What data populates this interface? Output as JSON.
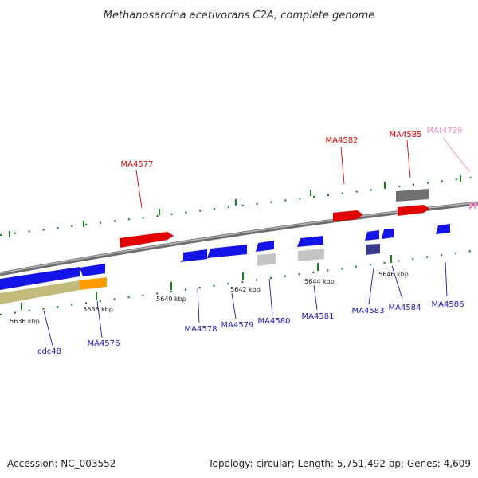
{
  "title": "Methanosarcina acetivorans C2A, complete genome",
  "footer": {
    "accession": "Accession: NC_003552",
    "summary": "Topology: circular; Length: 5,751,492 bp; Genes: 4,609"
  },
  "colors": {
    "red": "#e00000",
    "blue": "#1414e8",
    "darkblue": "#3a3a8c",
    "gray": "#707070",
    "lightgray": "#c4c4c4",
    "orange": "#ff9a00",
    "olive": "#c3bb7b",
    "pink": "#f08cc8",
    "tick": "#1a7f1a",
    "axis": "#8a8a8a",
    "label_red": "#e00000",
    "label_blue": "#1a1ab8",
    "label_pink": "#f08cc8"
  },
  "ticks": [
    {
      "label": "5636 kbp"
    },
    {
      "label": "5638 kbp"
    },
    {
      "label": "5640 kbp"
    },
    {
      "label": "5642 kbp"
    },
    {
      "label": "5644 kbp"
    },
    {
      "label": "5646 kbp"
    }
  ],
  "genes": [
    {
      "name": "cdc48",
      "strand": "minus",
      "color": "blue"
    },
    {
      "name": "MA4576",
      "strand": "minus",
      "color": "blue"
    },
    {
      "name": "MA4577",
      "strand": "plus",
      "color": "red"
    },
    {
      "name": "MA4578",
      "strand": "minus",
      "color": "blue"
    },
    {
      "name": "MA4579",
      "strand": "minus",
      "color": "blue"
    },
    {
      "name": "MA4580",
      "strand": "minus",
      "color": "blue"
    },
    {
      "name": "MA4581",
      "strand": "minus",
      "color": "blue"
    },
    {
      "name": "MA4582",
      "strand": "plus",
      "color": "red"
    },
    {
      "name": "MA4583",
      "strand": "minus",
      "color": "blue"
    },
    {
      "name": "MA4584",
      "strand": "minus",
      "color": "blue"
    },
    {
      "name": "MA4585",
      "strand": "plus",
      "color": "red"
    },
    {
      "name": "MA4586",
      "strand": "minus",
      "color": "blue"
    },
    {
      "name": "MAt4739",
      "strand": "plus",
      "color": "pink"
    }
  ]
}
